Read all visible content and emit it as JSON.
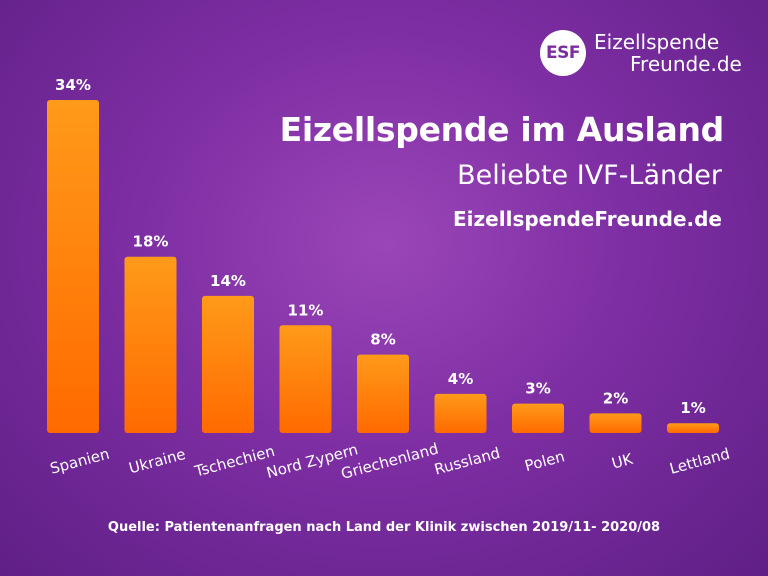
{
  "logo": {
    "mark": "ESF",
    "line1": "Eizellspende",
    "line2": "Freunde.de"
  },
  "header": {
    "title": "Eizellspende im Ausland",
    "subtitle": "Beliebte IVF-Länder",
    "site": "EizellspendeFreunde.de"
  },
  "footer": {
    "source": "Quelle: Patientenanfragen nach Land der Klinik zwischen 2019/11- 2020/08"
  },
  "colors": {
    "bar_top": "#ff9a1a",
    "bar_bottom": "#ff6a00",
    "text": "#ffffff",
    "logo_mark": "#7b2e9e"
  },
  "chart_data": {
    "type": "bar",
    "title": "Eizellspende im Ausland",
    "subtitle": "Beliebte IVF-Länder",
    "categories": [
      "Spanien",
      "Ukraine",
      "Tschechien",
      "Nord Zypern",
      "Griechenland",
      "Russland",
      "Polen",
      "UK",
      "Lettland"
    ],
    "values": [
      34,
      18,
      14,
      11,
      8,
      4,
      3,
      2,
      1
    ],
    "value_labels": [
      "34%",
      "18%",
      "14%",
      "11%",
      "8%",
      "4%",
      "3%",
      "2%",
      "1%"
    ],
    "unit": "%",
    "ylim": [
      0,
      34
    ],
    "xlabel": "",
    "ylabel": "",
    "grid": false
  }
}
